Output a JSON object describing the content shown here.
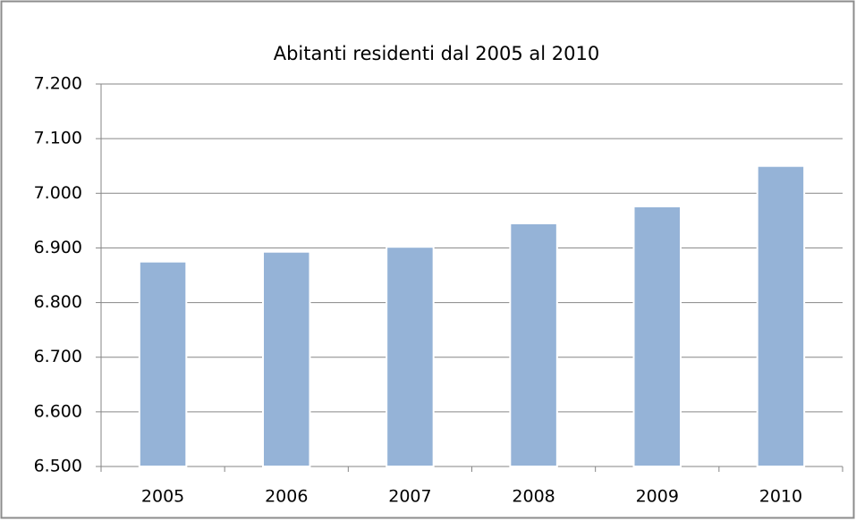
{
  "chart_data": {
    "type": "bar",
    "title": "Abitanti residenti dal 2005 al 2010",
    "categories": [
      "2005",
      "2006",
      "2007",
      "2008",
      "2009",
      "2010"
    ],
    "values": [
      6875,
      6893,
      6902,
      6945,
      6976,
      7050
    ],
    "color": "#95b3d7",
    "ylim": [
      6500,
      7200
    ],
    "yticks": [
      {
        "value": 6500,
        "label": "6.500"
      },
      {
        "value": 6600,
        "label": "6.600"
      },
      {
        "value": 6700,
        "label": "6.700"
      },
      {
        "value": 6800,
        "label": "6.800"
      },
      {
        "value": 6900,
        "label": "6.900"
      },
      {
        "value": 7000,
        "label": "7.000"
      },
      {
        "value": 7100,
        "label": "7.100"
      },
      {
        "value": 7200,
        "label": "7.200"
      }
    ],
    "grid": true
  }
}
